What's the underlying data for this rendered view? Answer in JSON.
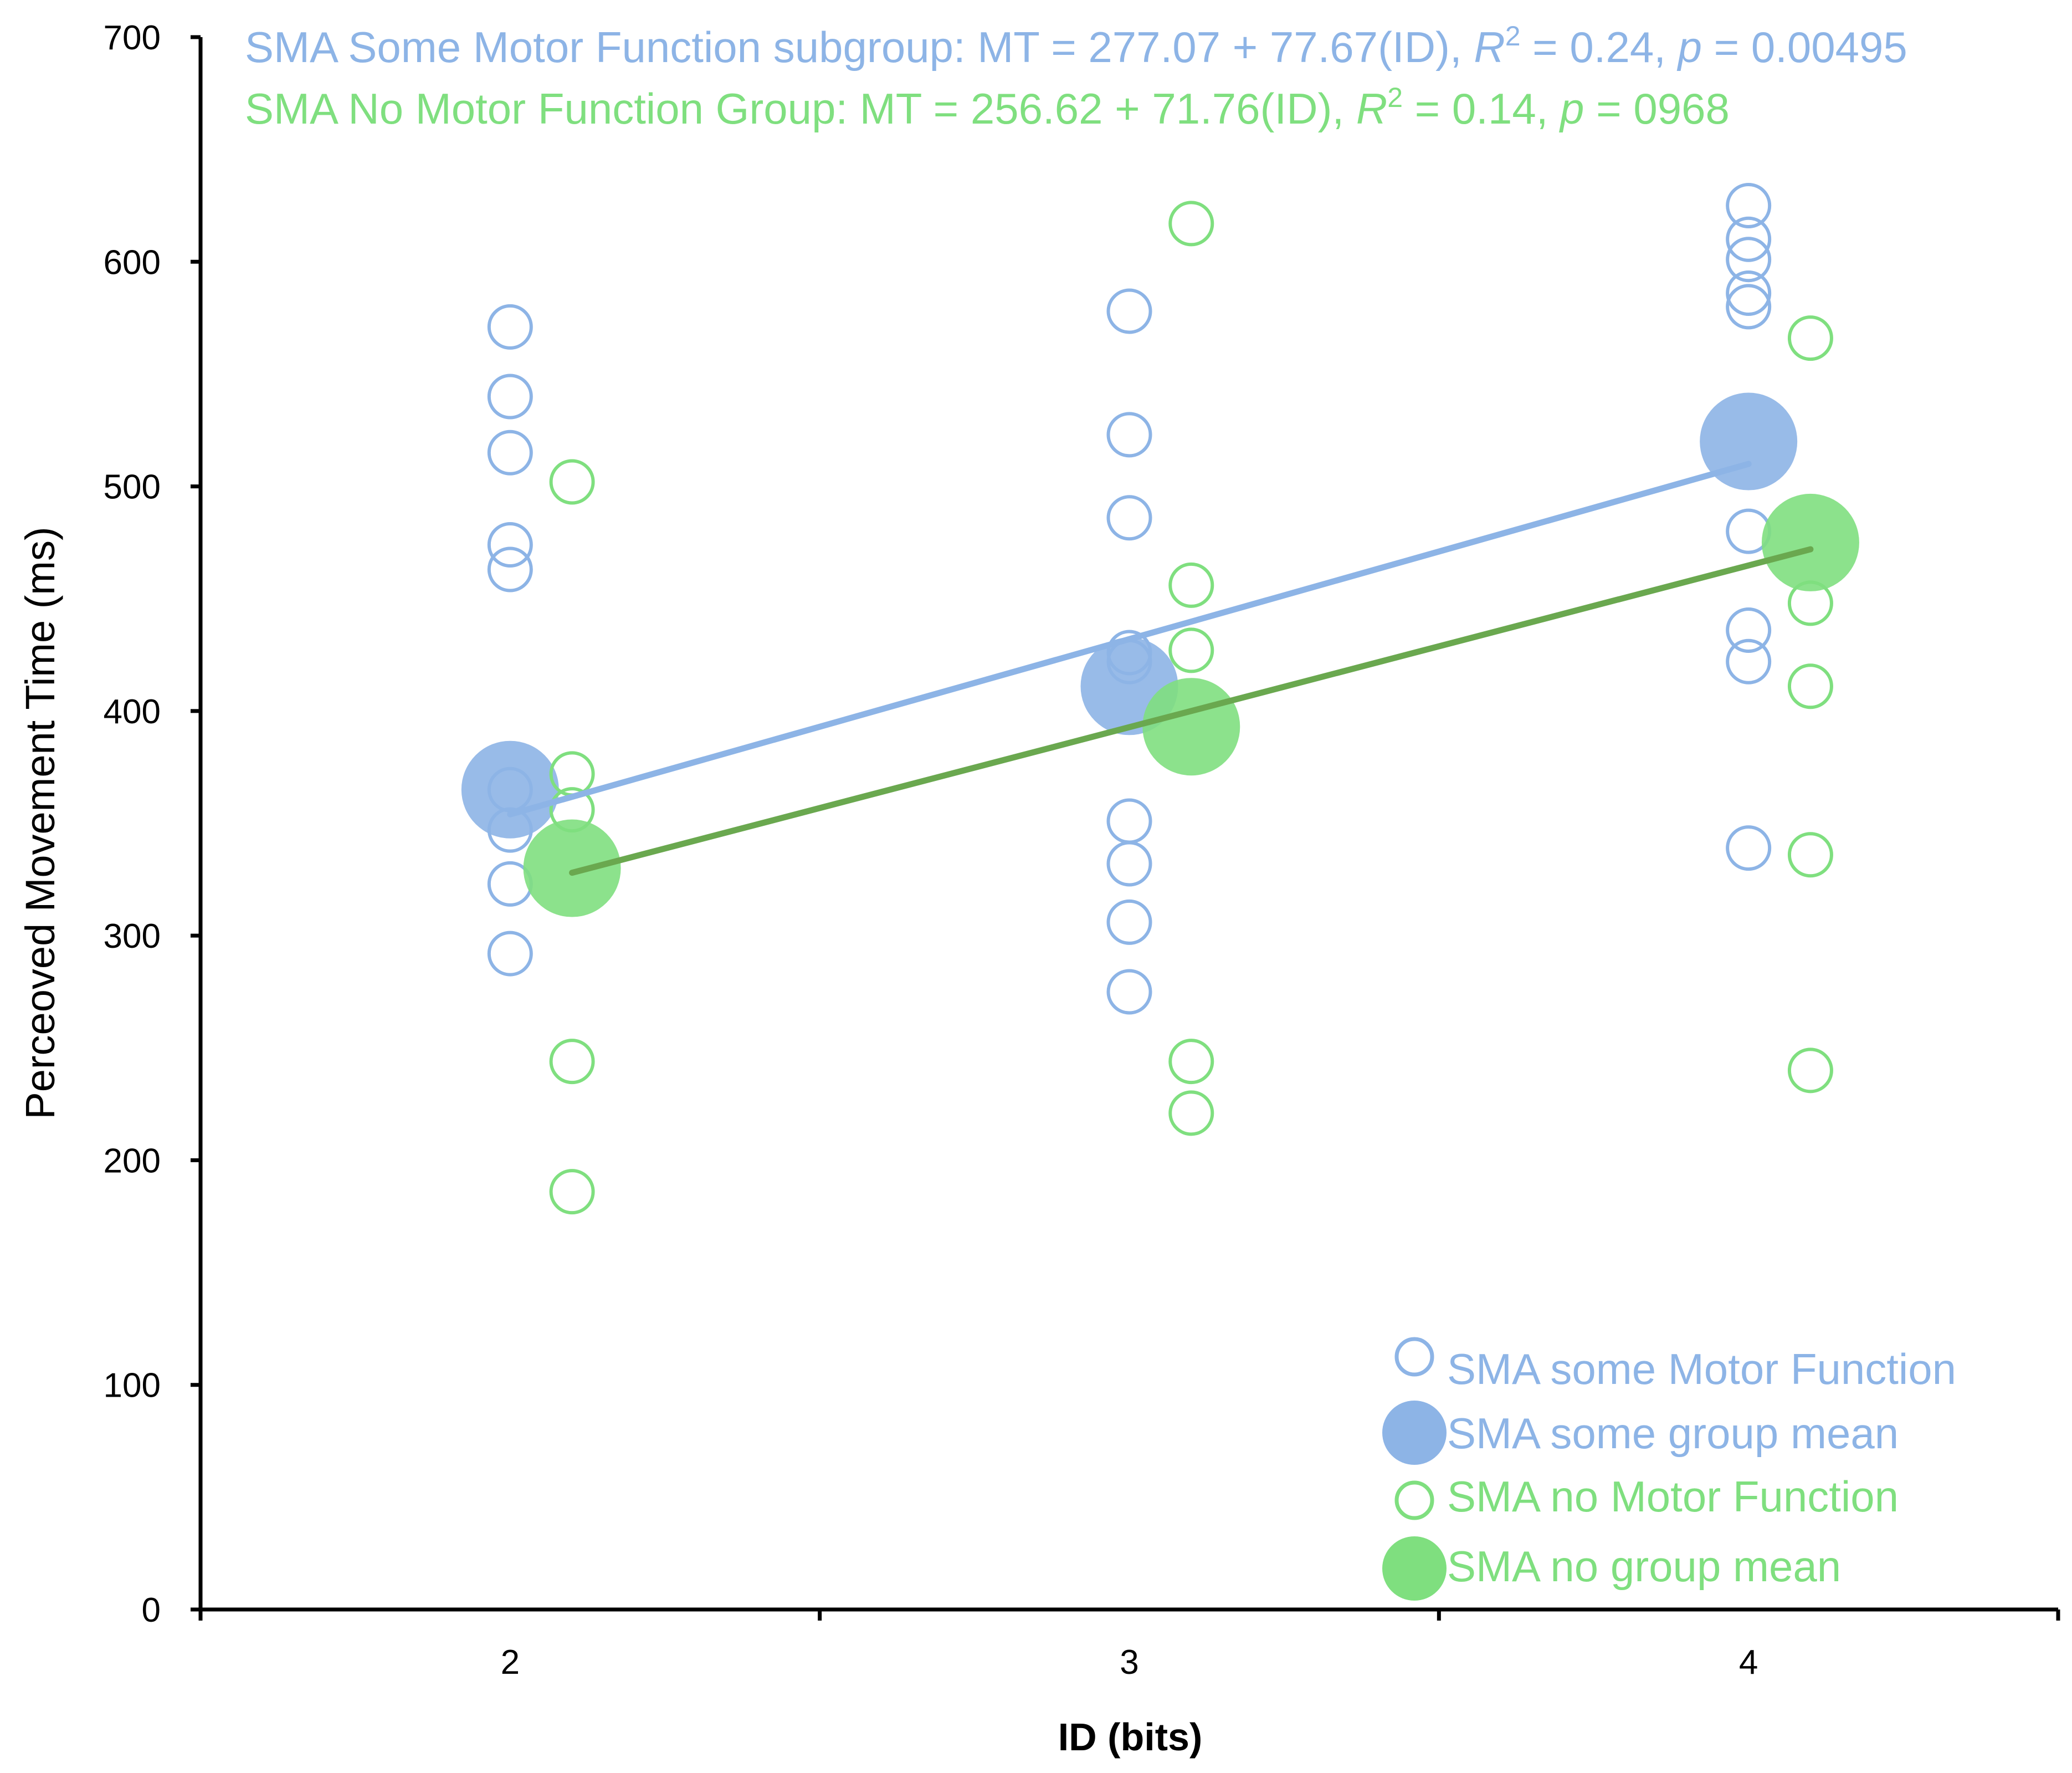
{
  "chart_data": {
    "type": "scatter",
    "xlabel": "ID (bits)",
    "ylabel": "Perceoved Movement Time (ms)",
    "xlim": [
      1.5,
      4.5
    ],
    "ylim": [
      0,
      700
    ],
    "x_ticks": [
      "2",
      "3",
      "4"
    ],
    "y_ticks": [
      "0",
      "100",
      "200",
      "300",
      "400",
      "500",
      "600",
      "700"
    ],
    "colors": {
      "some": "#8db4e6",
      "some_fill": "#8db4e6",
      "no": "#7fdf7f",
      "no_fill": "#7fdf7f",
      "no_line": "#6aa84f"
    },
    "series": [
      {
        "name": "SMA some Motor Function",
        "group": "some",
        "marker": "open-small",
        "points": [
          {
            "x": 2,
            "y": 571
          },
          {
            "x": 2,
            "y": 540
          },
          {
            "x": 2,
            "y": 515
          },
          {
            "x": 2,
            "y": 474
          },
          {
            "x": 2,
            "y": 463
          },
          {
            "x": 2,
            "y": 365
          },
          {
            "x": 2,
            "y": 347
          },
          {
            "x": 2,
            "y": 323
          },
          {
            "x": 2,
            "y": 292
          },
          {
            "x": 3,
            "y": 578
          },
          {
            "x": 3,
            "y": 523
          },
          {
            "x": 3,
            "y": 486
          },
          {
            "x": 3,
            "y": 426
          },
          {
            "x": 3,
            "y": 422
          },
          {
            "x": 3,
            "y": 351
          },
          {
            "x": 3,
            "y": 332
          },
          {
            "x": 3,
            "y": 306
          },
          {
            "x": 3,
            "y": 275
          },
          {
            "x": 4,
            "y": 625
          },
          {
            "x": 4,
            "y": 610
          },
          {
            "x": 4,
            "y": 601
          },
          {
            "x": 4,
            "y": 586
          },
          {
            "x": 4,
            "y": 580
          },
          {
            "x": 4,
            "y": 480
          },
          {
            "x": 4,
            "y": 436
          },
          {
            "x": 4,
            "y": 422
          },
          {
            "x": 4,
            "y": 339
          }
        ]
      },
      {
        "name": "SMA some group mean",
        "group": "some",
        "marker": "filled-large",
        "points": [
          {
            "x": 2,
            "y": 365
          },
          {
            "x": 3,
            "y": 411
          },
          {
            "x": 4,
            "y": 520
          }
        ]
      },
      {
        "name": "SMA no Motor Function",
        "group": "no",
        "marker": "open-small",
        "points": [
          {
            "x": 2.1,
            "y": 502
          },
          {
            "x": 2.1,
            "y": 372
          },
          {
            "x": 2.1,
            "y": 356
          },
          {
            "x": 2.1,
            "y": 244
          },
          {
            "x": 2.1,
            "y": 186
          },
          {
            "x": 3.1,
            "y": 617
          },
          {
            "x": 3.1,
            "y": 456
          },
          {
            "x": 3.1,
            "y": 427
          },
          {
            "x": 3.1,
            "y": 244
          },
          {
            "x": 3.1,
            "y": 221
          },
          {
            "x": 4.1,
            "y": 566
          },
          {
            "x": 4.1,
            "y": 448
          },
          {
            "x": 4.1,
            "y": 411
          },
          {
            "x": 4.1,
            "y": 336
          },
          {
            "x": 4.1,
            "y": 240
          }
        ]
      },
      {
        "name": "SMA no group mean",
        "group": "no",
        "marker": "filled-large",
        "points": [
          {
            "x": 2.1,
            "y": 330
          },
          {
            "x": 3.1,
            "y": 393
          },
          {
            "x": 4.1,
            "y": 475
          }
        ]
      }
    ],
    "fit_lines": [
      {
        "group": "some",
        "x": [
          2,
          4
        ],
        "y": [
          354,
          510
        ]
      },
      {
        "group": "no",
        "x": [
          2.1,
          4.1
        ],
        "y": [
          328,
          472
        ]
      }
    ],
    "annotations": [
      {
        "group": "some",
        "prefix": "SMA Some Motor Function subgroup: MT = 277.07 + 77.67(ID), ",
        "r_label": "R",
        "r_sup": "2",
        "r_value": " = 0.24, ",
        "p_label": "p",
        "p_value": " = 0.00495"
      },
      {
        "group": "no",
        "prefix": "SMA No Motor Function Group: MT = 256.62 + 71.76(ID), ",
        "r_label": "R",
        "r_sup": "2",
        "r_value": " = 0.14, ",
        "p_label": "p",
        "p_value": " = 0968"
      }
    ],
    "legend_position": "bottom-right"
  }
}
